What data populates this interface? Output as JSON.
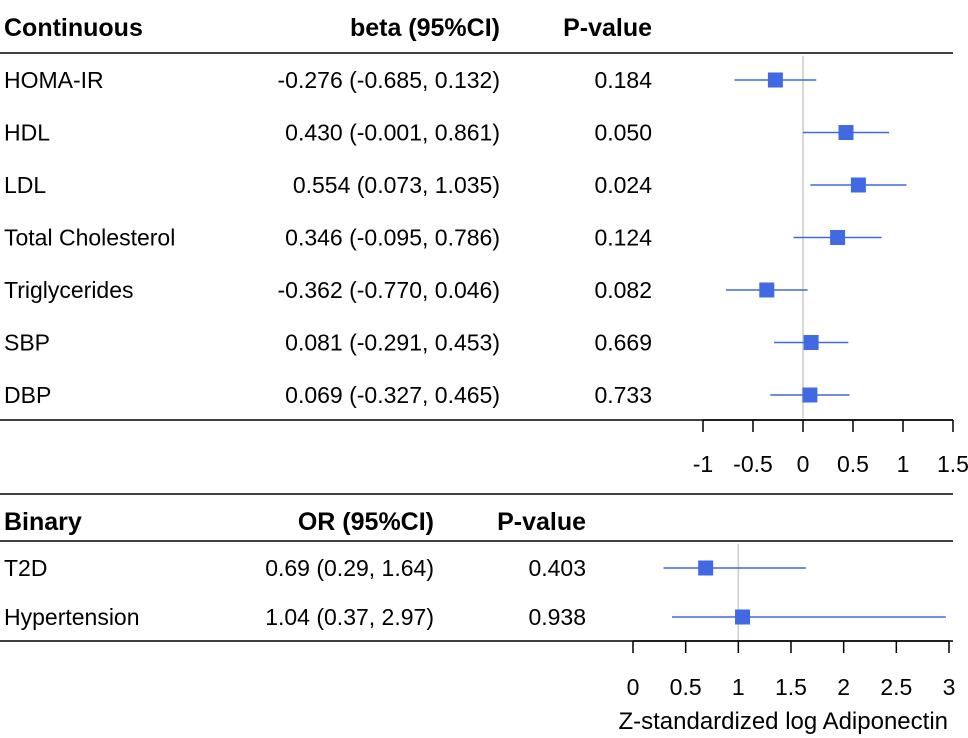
{
  "chart_data": [
    {
      "type": "forest",
      "header": {
        "label": "Continuous",
        "estimate": "beta (95%CI)",
        "pvalue": "P-value"
      },
      "rows": [
        {
          "label": "HOMA-IR",
          "est_text": "-0.276 (-0.685, 0.132)",
          "p_text": "0.184",
          "estimate": -0.276,
          "lower": -0.685,
          "upper": 0.132
        },
        {
          "label": "HDL",
          "est_text": "0.430 (-0.001, 0.861)",
          "p_text": "0.050",
          "estimate": 0.43,
          "lower": -0.001,
          "upper": 0.861
        },
        {
          "label": "LDL",
          "est_text": "0.554 (0.073, 1.035)",
          "p_text": "0.024",
          "estimate": 0.554,
          "lower": 0.073,
          "upper": 1.035
        },
        {
          "label": "Total Cholesterol",
          "est_text": "0.346 (-0.095, 0.786)",
          "p_text": "0.124",
          "estimate": 0.346,
          "lower": -0.095,
          "upper": 0.786
        },
        {
          "label": "Triglycerides",
          "est_text": "-0.362 (-0.770, 0.046)",
          "p_text": "0.082",
          "estimate": -0.362,
          "lower": -0.77,
          "upper": 0.046
        },
        {
          "label": "SBP",
          "est_text": "0.081 (-0.291, 0.453)",
          "p_text": "0.669",
          "estimate": 0.081,
          "lower": -0.291,
          "upper": 0.453
        },
        {
          "label": "DBP",
          "est_text": "0.069 (-0.327, 0.465)",
          "p_text": "0.733",
          "estimate": 0.069,
          "lower": -0.327,
          "upper": 0.465
        }
      ],
      "xlim": [
        -1,
        1.5
      ],
      "ref_line": 0,
      "ticks": [
        -1,
        -0.5,
        0,
        0.5,
        1,
        1.5
      ],
      "tick_labels": [
        "-1",
        "-0.5",
        "0",
        "0.5",
        "1",
        "1.5"
      ]
    },
    {
      "type": "forest",
      "header": {
        "label": "Binary",
        "estimate": "OR (95%CI)",
        "pvalue": "P-value"
      },
      "rows": [
        {
          "label": "T2D",
          "est_text": "0.69 (0.29, 1.64)",
          "p_text": "0.403",
          "estimate": 0.69,
          "lower": 0.29,
          "upper": 1.64
        },
        {
          "label": "Hypertension",
          "est_text": "1.04 (0.37, 2.97)",
          "p_text": "0.938",
          "estimate": 1.04,
          "lower": 0.37,
          "upper": 2.97
        }
      ],
      "xlim": [
        0,
        3
      ],
      "ref_line": 1,
      "ticks": [
        0,
        0.5,
        1,
        1.5,
        2,
        2.5,
        3
      ],
      "tick_labels": [
        "0",
        "0.5",
        "1",
        "1.5",
        "2",
        "2.5",
        "3"
      ]
    }
  ],
  "xlabel": "Z-standardized log Adiponectin",
  "colors": {
    "marker": "#4169e1",
    "ref_line": "#cccccc",
    "rule": "#000000",
    "text": "#000000"
  }
}
